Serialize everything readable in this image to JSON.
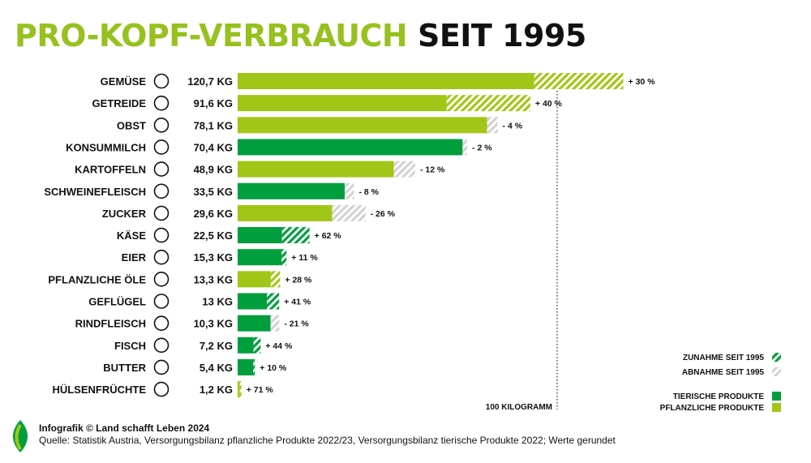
{
  "title": {
    "part1": "PRO-KOPF-VERBRAUCH",
    "part2": "SEIT 1995"
  },
  "colors": {
    "pflanzlich": "#a2c617",
    "tierisch": "#009e3d",
    "decrease_hatch": "#d3d3d3",
    "title_green": "#97c11f"
  },
  "chart_data": {
    "type": "bar",
    "orientation": "horizontal",
    "unit": "KG",
    "reference_line": {
      "value": 100,
      "label": "100 KILOGRAMM"
    },
    "categories": [
      "GEMÜSE",
      "GETREIDE",
      "OBST",
      "KONSUMMILCH",
      "KARTOFFELN",
      "SCHWEINEFLEISCH",
      "ZUCKER",
      "KÄSE",
      "EIER",
      "PFLANZLICHE ÖLE",
      "GEFLÜGEL",
      "RINDFLEISCH",
      "FISCH",
      "BUTTER",
      "HÜLSENFRÜCHTE"
    ],
    "value_labels": [
      "120,7 KG",
      "91,6 KG",
      "78,1 KG",
      "70,4 KG",
      "48,9 KG",
      "33,5 KG",
      "29,6 KG",
      "22,5 KG",
      "15,3 KG",
      "13,3 KG",
      "13 KG",
      "10,3 KG",
      "7,2 KG",
      "5,4 KG",
      "1,2 KG"
    ],
    "values": [
      120.7,
      91.6,
      78.1,
      70.4,
      48.9,
      33.5,
      29.6,
      22.5,
      15.3,
      13.3,
      13,
      10.3,
      7.2,
      5.4,
      1.2
    ],
    "change_pct": [
      30,
      40,
      -4,
      -2,
      -12,
      -8,
      -26,
      62,
      11,
      28,
      41,
      -21,
      44,
      10,
      71
    ],
    "change_labels": [
      "+ 30 %",
      "+ 40 %",
      "- 4 %",
      "- 2 %",
      "- 12 %",
      "- 8 %",
      "- 26 %",
      "+ 62 %",
      "+ 11 %",
      "+ 28 %",
      "+ 41 %",
      "- 21 %",
      "+ 44 %",
      "+ 10 %",
      "+ 71 %"
    ],
    "group": [
      "pflanzlich",
      "pflanzlich",
      "pflanzlich",
      "tierisch",
      "pflanzlich",
      "tierisch",
      "pflanzlich",
      "tierisch",
      "tierisch",
      "pflanzlich",
      "tierisch",
      "tierisch",
      "tierisch",
      "tierisch",
      "pflanzlich"
    ],
    "icons": [
      "vegetable-icon",
      "wheat-icon",
      "apple-icon",
      "milk-carton-icon",
      "potato-icon",
      "ham-icon",
      "sugar-cube-icon",
      "cheese-icon",
      "eggs-icon",
      "leaf-icon",
      "chicken-leg-icon",
      "steak-icon",
      "fish-icon",
      "butter-icon",
      "beans-icon"
    ],
    "legend": {
      "position": "bottom-right",
      "items": [
        "ZUNAHME SEIT 1995",
        "ABNAHME SEIT 1995",
        "TIERISCHE PRODUKTE",
        "PFLANZLICHE PRODUKTE"
      ]
    }
  },
  "footer": {
    "credit": "Infografik © Land schafft Leben 2024",
    "source": "Quelle: Statistik Austria, Versorgungsbilanz pflanzliche Produkte 2022/23, Versorgungsbilanz tierische Produkte 2022; Werte gerundet"
  }
}
